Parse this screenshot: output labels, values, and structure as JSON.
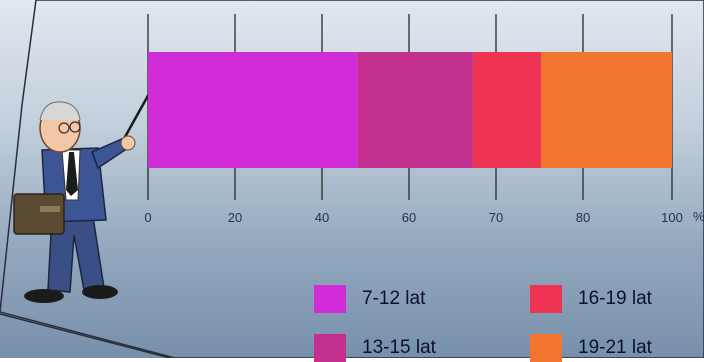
{
  "chart_data": {
    "type": "bar",
    "orientation": "horizontal-stacked",
    "title": "",
    "xlabel": "",
    "ylabel": "",
    "axis_unit": "%",
    "tick_labels": [
      "0",
      "20",
      "40",
      "60",
      "70",
      "80",
      "100"
    ],
    "series": [
      {
        "name": "7-12 lat",
        "start": 0,
        "end": 40,
        "value": 40,
        "color": "#d22cd8"
      },
      {
        "name": "13-15 lat",
        "start": 40,
        "end": 62,
        "value": 22,
        "color": "#c43090"
      },
      {
        "name": "16-19 lat",
        "start": 62,
        "end": 75,
        "value": 13,
        "color": "#ee3452"
      },
      {
        "name": "19-21 lat",
        "start": 75,
        "end": 100,
        "value": 25,
        "color": "#f27630"
      }
    ],
    "legend_position": "bottom-right",
    "grid": true
  }
}
